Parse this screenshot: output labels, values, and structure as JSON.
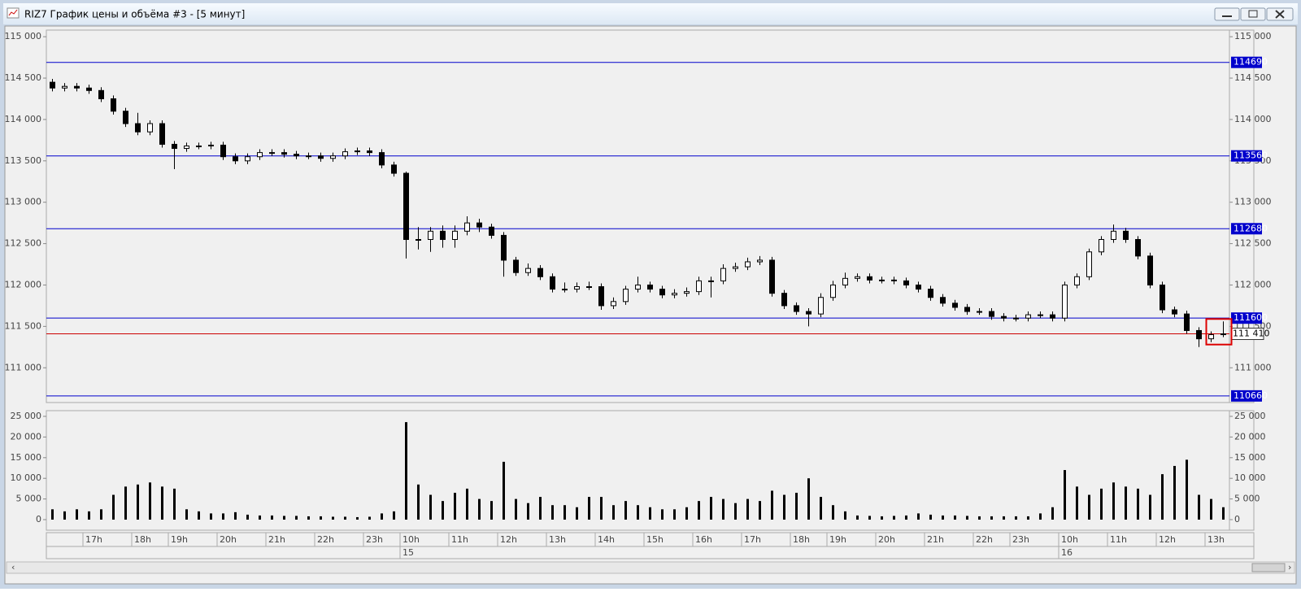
{
  "window": {
    "title": "RIZ7 График цены и объёма #3 - [5 минут]"
  },
  "chart_data": [
    {
      "type": "candlestick",
      "ylim": [
        110580,
        115080
      ],
      "yticks": [
        {
          "value": 111000,
          "label": "111 000"
        },
        {
          "value": 111500,
          "label": "111 500"
        },
        {
          "value": 112000,
          "label": "112 000"
        },
        {
          "value": 112500,
          "label": "112 500"
        },
        {
          "value": 113000,
          "label": "113 000"
        },
        {
          "value": 113500,
          "label": "113 500"
        },
        {
          "value": 114000,
          "label": "114 000"
        },
        {
          "value": 114500,
          "label": "114 500"
        },
        {
          "value": 115000,
          "label": "115 000"
        }
      ],
      "categories": [
        null,
        null,
        null,
        "17h",
        null,
        null,
        null,
        "18h",
        null,
        null,
        "19h",
        null,
        null,
        null,
        "20h",
        null,
        null,
        null,
        "21h",
        null,
        null,
        null,
        "22h",
        null,
        null,
        null,
        "23h",
        null,
        null,
        "10h",
        null,
        null,
        null,
        "11h",
        null,
        null,
        null,
        "12h",
        null,
        null,
        null,
        "13h",
        null,
        null,
        null,
        "14h",
        null,
        null,
        null,
        "15h",
        null,
        null,
        null,
        "16h",
        null,
        null,
        null,
        "17h",
        null,
        null,
        null,
        "18h",
        null,
        null,
        "19h",
        null,
        null,
        null,
        "20h",
        null,
        null,
        null,
        "21h",
        null,
        null,
        null,
        "22h",
        null,
        null,
        "23h",
        null,
        null,
        null,
        "10h",
        null,
        null,
        null,
        "11h",
        null,
        null,
        null,
        "12h",
        null,
        null,
        null,
        "13h",
        null
      ],
      "dates": [
        null,
        null,
        null,
        null,
        null,
        null,
        null,
        null,
        null,
        null,
        null,
        null,
        null,
        null,
        null,
        null,
        null,
        null,
        null,
        null,
        null,
        null,
        null,
        null,
        null,
        null,
        null,
        null,
        null,
        "15",
        null,
        null,
        null,
        null,
        null,
        null,
        null,
        null,
        null,
        null,
        null,
        null,
        null,
        null,
        null,
        null,
        null,
        null,
        null,
        null,
        null,
        null,
        null,
        null,
        null,
        null,
        null,
        null,
        null,
        null,
        null,
        null,
        null,
        null,
        null,
        null,
        null,
        null,
        null,
        null,
        null,
        null,
        null,
        null,
        null,
        null,
        null,
        null,
        null,
        null,
        null,
        null,
        null,
        "16",
        null,
        null,
        null,
        null,
        null,
        null,
        null,
        null,
        null,
        null,
        null,
        null,
        null
      ],
      "ohlc": [
        [
          114450,
          114490,
          114340,
          114380
        ],
        [
          114380,
          114440,
          114340,
          114400
        ],
        [
          114400,
          114440,
          114340,
          114380
        ],
        [
          114380,
          114420,
          114310,
          114350
        ],
        [
          114350,
          114390,
          114210,
          114250
        ],
        [
          114250,
          114290,
          114060,
          114100
        ],
        [
          114100,
          114140,
          113910,
          113950
        ],
        [
          113950,
          114080,
          113810,
          113850
        ],
        [
          113850,
          113990,
          113810,
          113950
        ],
        [
          113950,
          113990,
          113660,
          113700
        ],
        [
          113700,
          113740,
          113400,
          113650
        ],
        [
          113650,
          113720,
          113610,
          113680
        ],
        [
          113680,
          113720,
          113640,
          113680
        ],
        [
          113680,
          113730,
          113640,
          113690
        ],
        [
          113690,
          113730,
          113510,
          113550
        ],
        [
          113550,
          113590,
          113460,
          113500
        ],
        [
          113500,
          113590,
          113460,
          113550
        ],
        [
          113550,
          113640,
          113510,
          113600
        ],
        [
          113600,
          113640,
          113560,
          113600
        ],
        [
          113600,
          113640,
          113540,
          113580
        ],
        [
          113580,
          113620,
          113520,
          113560
        ],
        [
          113560,
          113600,
          113520,
          113560
        ],
        [
          113560,
          113600,
          113490,
          113530
        ],
        [
          113530,
          113600,
          113490,
          113560
        ],
        [
          113560,
          113650,
          113520,
          113610
        ],
        [
          113610,
          113660,
          113570,
          113620
        ],
        [
          113620,
          113660,
          113560,
          113600
        ],
        [
          113600,
          113640,
          113410,
          113450
        ],
        [
          113450,
          113490,
          113310,
          113350
        ],
        [
          113350,
          113370,
          112320,
          112550
        ],
        [
          112550,
          112700,
          112430,
          112550
        ],
        [
          112550,
          112700,
          112400,
          112650
        ],
        [
          112650,
          112720,
          112450,
          112550
        ],
        [
          112550,
          112720,
          112450,
          112650
        ],
        [
          112650,
          112830,
          112600,
          112750
        ],
        [
          112750,
          112800,
          112640,
          112700
        ],
        [
          112700,
          112740,
          112560,
          112600
        ],
        [
          112600,
          112640,
          112100,
          112300
        ],
        [
          112300,
          112340,
          112110,
          112150
        ],
        [
          112150,
          112260,
          112110,
          112200
        ],
        [
          112200,
          112240,
          112060,
          112100
        ],
        [
          112100,
          112140,
          111910,
          111950
        ],
        [
          111950,
          112030,
          111910,
          111950
        ],
        [
          111950,
          112030,
          111910,
          111980
        ],
        [
          111980,
          112040,
          111940,
          111980
        ],
        [
          111980,
          112020,
          111700,
          111750
        ],
        [
          111750,
          111850,
          111710,
          111800
        ],
        [
          111800,
          111990,
          111760,
          111950
        ],
        [
          111950,
          112100,
          111910,
          112000
        ],
        [
          112000,
          112040,
          111910,
          111950
        ],
        [
          111950,
          111990,
          111840,
          111880
        ],
        [
          111880,
          111950,
          111840,
          111900
        ],
        [
          111900,
          111970,
          111860,
          111920
        ],
        [
          111920,
          112100,
          111880,
          112050
        ],
        [
          112050,
          112100,
          111850,
          112050
        ],
        [
          112050,
          112250,
          112010,
          112200
        ],
        [
          112200,
          112270,
          112160,
          112220
        ],
        [
          112220,
          112330,
          112180,
          112280
        ],
        [
          112280,
          112350,
          112240,
          112300
        ],
        [
          112300,
          112340,
          111860,
          111900
        ],
        [
          111900,
          111940,
          111710,
          111750
        ],
        [
          111750,
          111790,
          111640,
          111680
        ],
        [
          111680,
          111720,
          111500,
          111650
        ],
        [
          111650,
          111900,
          111610,
          111850
        ],
        [
          111850,
          112050,
          111810,
          112000
        ],
        [
          112000,
          112150,
          111960,
          112080
        ],
        [
          112080,
          112140,
          112040,
          112100
        ],
        [
          112100,
          112140,
          112020,
          112060
        ],
        [
          112060,
          112100,
          112020,
          112060
        ],
        [
          112060,
          112100,
          112010,
          112050
        ],
        [
          112050,
          112090,
          111960,
          112000
        ],
        [
          112000,
          112040,
          111910,
          111950
        ],
        [
          111950,
          111990,
          111810,
          111850
        ],
        [
          111850,
          111890,
          111740,
          111780
        ],
        [
          111780,
          111820,
          111690,
          111730
        ],
        [
          111730,
          111770,
          111640,
          111680
        ],
        [
          111680,
          111720,
          111640,
          111680
        ],
        [
          111680,
          111720,
          111580,
          111620
        ],
        [
          111620,
          111660,
          111560,
          111600
        ],
        [
          111600,
          111640,
          111560,
          111600
        ],
        [
          111600,
          111680,
          111560,
          111640
        ],
        [
          111640,
          111680,
          111600,
          111640
        ],
        [
          111640,
          111680,
          111560,
          111600
        ],
        [
          111600,
          112040,
          111560,
          112000
        ],
        [
          112000,
          112140,
          111960,
          112100
        ],
        [
          112100,
          112440,
          112060,
          112400
        ],
        [
          112400,
          112590,
          112360,
          112550
        ],
        [
          112550,
          112730,
          112510,
          112650
        ],
        [
          112650,
          112690,
          112510,
          112550
        ],
        [
          112550,
          112590,
          112310,
          112350
        ],
        [
          112350,
          112390,
          111960,
          112000
        ],
        [
          112000,
          112040,
          111660,
          111700
        ],
        [
          111700,
          111740,
          111610,
          111650
        ],
        [
          111650,
          111690,
          111410,
          111450
        ],
        [
          111450,
          111490,
          111250,
          111350
        ],
        [
          111350,
          111440,
          111310,
          111400
        ],
        [
          111400,
          111560,
          111370,
          111410
        ]
      ],
      "color": "#000000",
      "levels": [
        114690,
        113560,
        112680,
        111600,
        110660
      ],
      "level_color": "#0000cc",
      "last_price": {
        "value": 111410,
        "label": "111 410"
      },
      "last_color": "#cc0000"
    },
    {
      "type": "bar",
      "ylim": [
        -2560,
        26380
      ],
      "yticks": [
        0,
        {
          "value": 5000,
          "label": "5 000"
        },
        {
          "value": 10000,
          "label": "10 000"
        },
        {
          "value": 15000,
          "label": "15 000"
        },
        {
          "value": 20000,
          "label": "20 000"
        },
        {
          "value": 25000,
          "label": "25 000"
        }
      ],
      "values": [
        2500,
        2000,
        2500,
        2000,
        2500,
        6000,
        8000,
        8500,
        9000,
        8000,
        7500,
        2500,
        2000,
        1500,
        1500,
        1800,
        1200,
        1000,
        1000,
        900,
        900,
        800,
        800,
        700,
        700,
        600,
        700,
        1500,
        2000,
        23600,
        8500,
        6000,
        4500,
        6500,
        7500,
        5000,
        4500,
        14000,
        5000,
        4000,
        5500,
        3500,
        3500,
        3000,
        5500,
        5500,
        3500,
        4500,
        3500,
        3000,
        2500,
        2500,
        3000,
        4500,
        5500,
        5000,
        4000,
        5000,
        4500,
        7000,
        6000,
        6500,
        10000,
        5500,
        3500,
        2000,
        1000,
        900,
        800,
        900,
        1000,
        1500,
        1200,
        1000,
        1000,
        900,
        800,
        800,
        800,
        800,
        800,
        1500,
        3000,
        12000,
        8000,
        6000,
        7500,
        9000,
        8000,
        7500,
        6000,
        11000,
        13000,
        14500,
        6000,
        5000,
        3000
      ],
      "color": "#000000"
    }
  ]
}
